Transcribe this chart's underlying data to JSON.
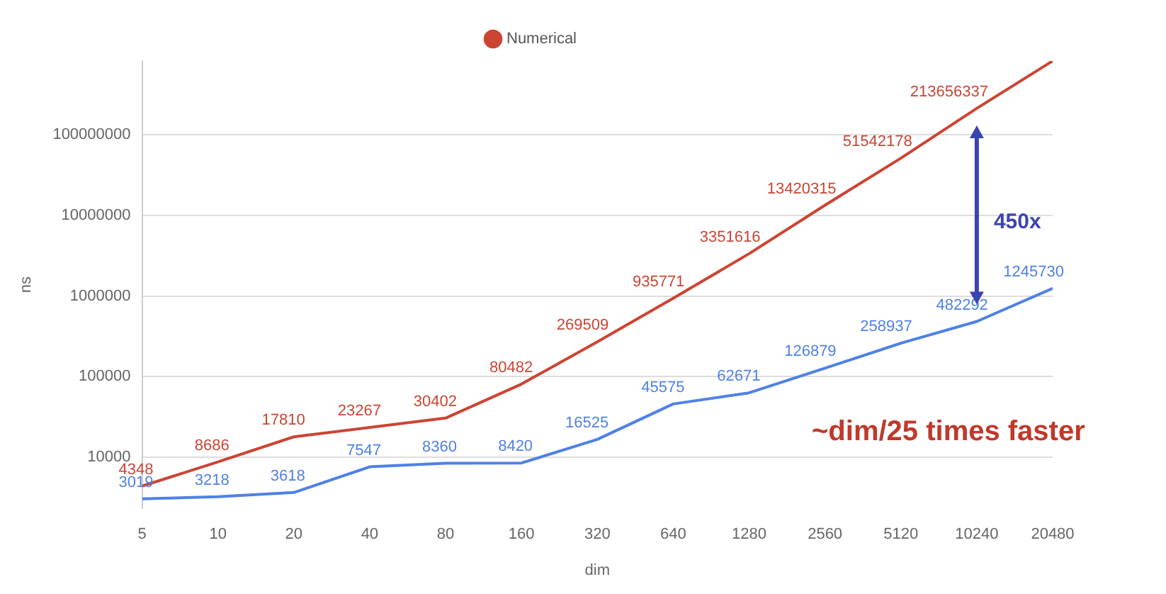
{
  "chart_data": {
    "type": "line",
    "xlabel": "dim",
    "ylabel": "ns",
    "categories": [
      "5",
      "10",
      "20",
      "40",
      "80",
      "160",
      "320",
      "640",
      "1280",
      "2560",
      "5120",
      "10240",
      "20480"
    ],
    "series": [
      {
        "color": "#4f81e6",
        "values": [
          3019,
          3218,
          3618,
          7547,
          8360,
          8420,
          16525,
          45575,
          62671,
          126879,
          258937,
          482292,
          1245730
        ],
        "value_labels": [
          "3019",
          "3218",
          "3618",
          "7547",
          "8360",
          "8420",
          "16525",
          "45575",
          "62671",
          "126879",
          "258937",
          "482292",
          "1245730"
        ]
      },
      {
        "name": "Numerical",
        "color": "#cc4433",
        "values": [
          4348,
          8686,
          17810,
          23267,
          30402,
          80482,
          269509,
          935771,
          3351616,
          13420315,
          51542178,
          213656337,
          830000000
        ],
        "value_labels": [
          "4348",
          "8686",
          "17810",
          "23267",
          "30402",
          "80482",
          "269509",
          "935771",
          "3351616",
          "13420315",
          "51542178",
          "213656337",
          null
        ]
      }
    ],
    "log": "y",
    "ylim": [
      2300,
      830000000
    ],
    "yticks": [
      10000,
      100000,
      1000000,
      10000000,
      100000000
    ],
    "grid": "y",
    "legend": "top",
    "marker": "none",
    "line_style": "solid",
    "annotations": [
      "450x",
      "~dim/25 times faster"
    ]
  }
}
